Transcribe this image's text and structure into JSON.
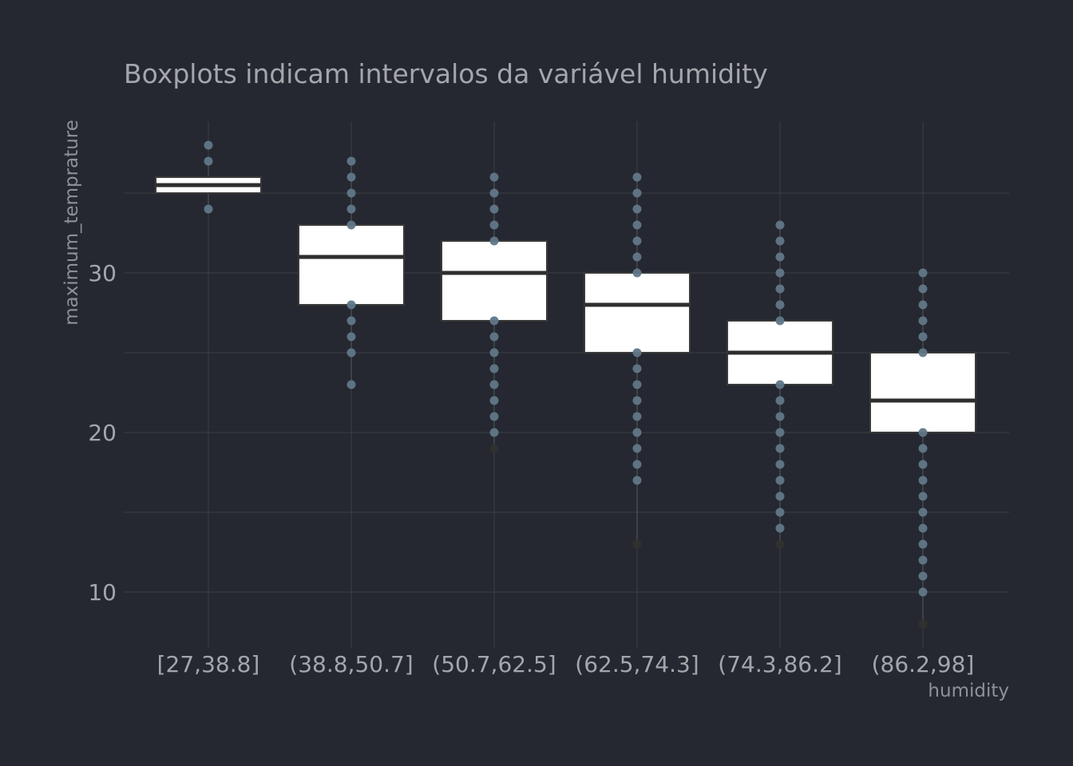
{
  "chart_data": {
    "type": "box",
    "title": "Boxplots indicam intervalos da variável humidity",
    "xlabel": "humidity",
    "ylabel": "maximum_temprature",
    "ylim": [
      6.5,
      39.5
    ],
    "yticks": [
      10,
      20,
      30
    ],
    "grid": true,
    "categories": [
      "[27,38.8]",
      "(38.8,50.7]",
      "(50.7,62.5]",
      "(62.5,74.3]",
      "(74.3,86.2]",
      "(86.2,98]"
    ],
    "boxes": [
      {
        "category": "[27,38.8]",
        "q1": 35,
        "median": 35.5,
        "q3": 36,
        "whisker_low": 34,
        "whisker_high": 37,
        "points": [
          38,
          37,
          34
        ]
      },
      {
        "category": "(38.8,50.7]",
        "q1": 28,
        "median": 31,
        "q3": 33,
        "whisker_low": 23,
        "whisker_high": 37,
        "points": [
          37,
          36,
          35,
          34,
          33,
          28,
          27,
          26,
          25,
          23
        ]
      },
      {
        "category": "(50.7,62.5]",
        "q1": 27,
        "median": 30,
        "q3": 32,
        "whisker_low": 19,
        "whisker_high": 36,
        "points": [
          36,
          35,
          34,
          33,
          32,
          27,
          26,
          25,
          24,
          23,
          22,
          21,
          20,
          19
        ]
      },
      {
        "category": "(62.5,74.3]",
        "q1": 25,
        "median": 28,
        "q3": 30,
        "whisker_low": 13,
        "whisker_high": 36,
        "points": [
          36,
          35,
          34,
          33,
          32,
          31,
          30,
          25,
          24,
          23,
          22,
          21,
          20,
          19,
          18,
          17,
          13
        ]
      },
      {
        "category": "(74.3,86.2]",
        "q1": 23,
        "median": 25,
        "q3": 27,
        "whisker_low": 13,
        "whisker_high": 33,
        "points": [
          33,
          32,
          31,
          30,
          29,
          28,
          27,
          23,
          22,
          21,
          20,
          19,
          18,
          17,
          16,
          15,
          14,
          13
        ]
      },
      {
        "category": "(86.2,98]",
        "q1": 20,
        "median": 22,
        "q3": 25,
        "whisker_low": 8,
        "whisker_high": 30,
        "points": [
          30,
          29,
          28,
          27,
          26,
          25,
          20,
          19,
          18,
          17,
          16,
          15,
          14,
          13,
          12,
          11,
          10,
          8
        ]
      }
    ],
    "colors": {
      "background": "#252830",
      "grid": "#3b3e45",
      "box_fill": "#ffffff",
      "box_line": "#3a3a3a",
      "median": "#2e2e2e",
      "point": "#607788",
      "point_dark": "#303030"
    }
  }
}
